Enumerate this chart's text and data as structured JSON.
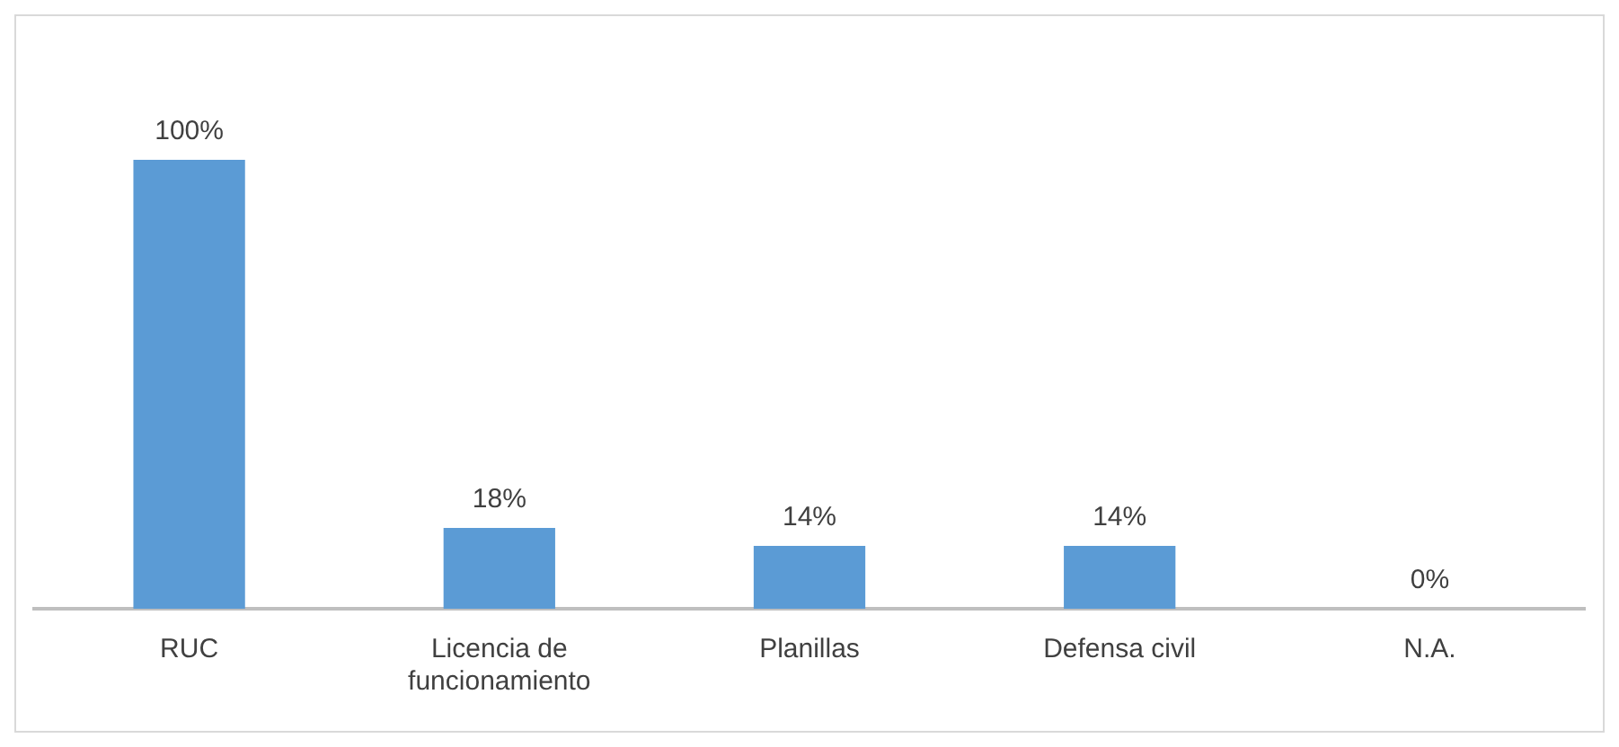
{
  "chart_data": {
    "type": "bar",
    "categories": [
      "RUC",
      "Licencia de funcionamiento",
      "Planillas",
      "Defensa civil",
      "N.A."
    ],
    "values": [
      100,
      18,
      14,
      14,
      0
    ],
    "value_labels": [
      "100%",
      "18%",
      "14%",
      "14%",
      "0%"
    ],
    "color": "#5b9bd5",
    "grid": false,
    "legend": false
  }
}
